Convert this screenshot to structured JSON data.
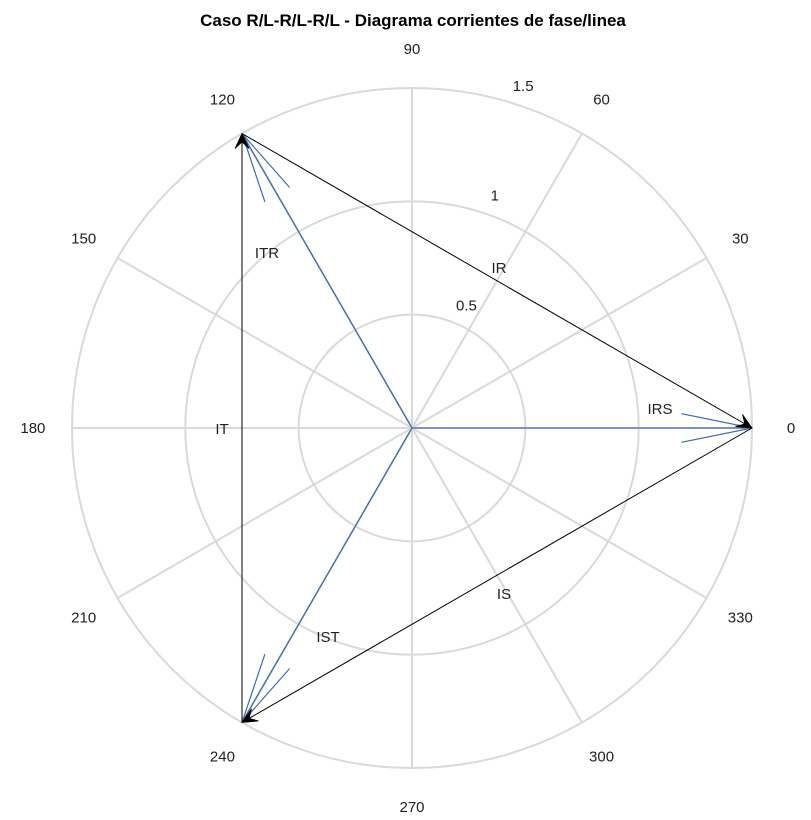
{
  "chart_data": {
    "type": "polar",
    "title": "Caso R/L-R/L-R/L - Diagrama corrientes de fase/linea",
    "angular_ticks": [
      "0",
      "30",
      "60",
      "90",
      "120",
      "150",
      "180",
      "210",
      "240",
      "270",
      "300",
      "330"
    ],
    "angle_values_deg": [
      0,
      30,
      60,
      90,
      120,
      150,
      180,
      210,
      240,
      270,
      300,
      330
    ],
    "radial_ticks": [
      0.5,
      1,
      1.5
    ],
    "radial_tick_labels": [
      "0.5",
      "1",
      "1.5"
    ],
    "rlim": [
      0,
      1.5
    ],
    "grid": true,
    "colors": {
      "phase": "#3b6ea8",
      "line": "#000000",
      "grid": "#d9d9d9"
    },
    "phasors": [
      {
        "name": "IRS",
        "angle_deg": 0,
        "magnitude": 1.5,
        "kind": "phase"
      },
      {
        "name": "ITR",
        "angle_deg": 120,
        "magnitude": 1.5,
        "kind": "phase"
      },
      {
        "name": "IST",
        "angle_deg": 240,
        "magnitude": 1.5,
        "kind": "phase"
      }
    ],
    "line_currents": [
      {
        "name": "IR",
        "from_deg": 120,
        "to_deg": 0
      },
      {
        "name": "IS",
        "from_deg": 0,
        "to_deg": 240
      },
      {
        "name": "IT",
        "from_deg": 240,
        "to_deg": 120
      }
    ]
  }
}
